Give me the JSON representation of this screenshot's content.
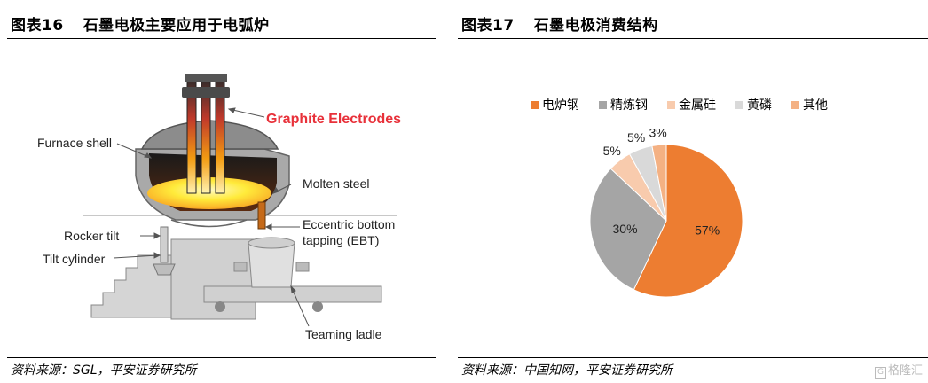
{
  "left_panel": {
    "title_num": "图表16",
    "title_text": "石墨电极主要应用于电弧炉",
    "source": "资料来源：SGL，平安证券研究所",
    "labels": {
      "graphite": "Graphite Electrodes",
      "furnace_shell": "Furnace shell",
      "molten_steel": "Molten steel",
      "ebt_1": "Eccentric bottom",
      "ebt_2": "tapping (EBT)",
      "rocker_tilt": "Rocker tilt",
      "tilt_cylinder": "Tilt cylinder",
      "teaming_ladle": "Teaming ladle"
    },
    "colors": {
      "graphite_label": "#e8313a"
    }
  },
  "right_panel": {
    "title_num": "图表17",
    "title_text": "石墨电极消费结构",
    "source": "资料来源：中国知网，平安证券研究所",
    "watermark": "格隆汇"
  },
  "chart_data": {
    "type": "pie",
    "title": "",
    "legend_position": "top",
    "slices": [
      {
        "name": "电炉钢",
        "value": 57,
        "label": "57%",
        "color": "#ed7d31"
      },
      {
        "name": "精炼钢",
        "value": 30,
        "label": "30%",
        "color": "#a5a5a5"
      },
      {
        "name": "金属硅",
        "value": 5,
        "label": "5%",
        "color": "#f8cbad"
      },
      {
        "name": "黄磷",
        "value": 5,
        "label": "5%",
        "color": "#d9d9d9"
      },
      {
        "name": "其他",
        "value": 3,
        "label": "3%",
        "color": "#f4b183"
      }
    ]
  }
}
